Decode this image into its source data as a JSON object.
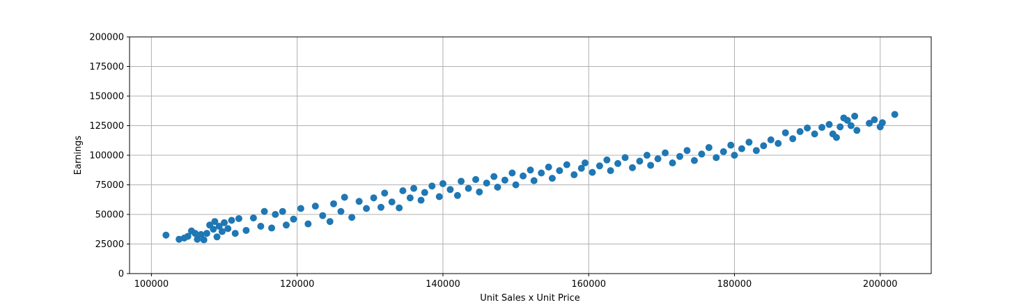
{
  "chart_data": {
    "type": "scatter",
    "title": "",
    "xlabel": "Unit Sales x Unit Price",
    "ylabel": "Earnings",
    "xlim": [
      97000,
      207000
    ],
    "ylim": [
      0,
      200000
    ],
    "x_ticks": [
      100000,
      120000,
      140000,
      160000,
      180000,
      200000
    ],
    "y_ticks": [
      0,
      25000,
      50000,
      75000,
      100000,
      125000,
      150000,
      175000,
      200000
    ],
    "grid": true,
    "legend": "none",
    "series": [
      {
        "color": "#1f77b4",
        "points": [
          [
            102000,
            32500
          ],
          [
            103800,
            29000
          ],
          [
            104500,
            30000
          ],
          [
            105000,
            31500
          ],
          [
            105500,
            36000
          ],
          [
            106000,
            34000
          ],
          [
            106300,
            29000
          ],
          [
            106800,
            33000
          ],
          [
            107200,
            28500
          ],
          [
            107600,
            34000
          ],
          [
            108000,
            41000
          ],
          [
            108500,
            37500
          ],
          [
            108700,
            44000
          ],
          [
            109000,
            31000
          ],
          [
            109300,
            40000
          ],
          [
            109700,
            35500
          ],
          [
            110000,
            43000
          ],
          [
            110500,
            38000
          ],
          [
            111000,
            45000
          ],
          [
            111500,
            34000
          ],
          [
            112000,
            46500
          ],
          [
            113000,
            36500
          ],
          [
            114000,
            47000
          ],
          [
            115000,
            40000
          ],
          [
            115500,
            52500
          ],
          [
            116500,
            38500
          ],
          [
            117000,
            50000
          ],
          [
            118000,
            52500
          ],
          [
            118500,
            41000
          ],
          [
            119500,
            46000
          ],
          [
            120500,
            55000
          ],
          [
            121500,
            42000
          ],
          [
            122500,
            57000
          ],
          [
            123500,
            49000
          ],
          [
            124500,
            44000
          ],
          [
            125000,
            59000
          ],
          [
            126000,
            52500
          ],
          [
            126500,
            64500
          ],
          [
            127500,
            47500
          ],
          [
            128500,
            61000
          ],
          [
            129500,
            55000
          ],
          [
            130500,
            64000
          ],
          [
            131500,
            56000
          ],
          [
            132000,
            68000
          ],
          [
            133000,
            60500
          ],
          [
            134000,
            55500
          ],
          [
            134500,
            70000
          ],
          [
            135500,
            64000
          ],
          [
            136000,
            72000
          ],
          [
            137000,
            62000
          ],
          [
            137500,
            68500
          ],
          [
            138500,
            74000
          ],
          [
            139500,
            65000
          ],
          [
            140000,
            76000
          ],
          [
            141000,
            71000
          ],
          [
            142000,
            66000
          ],
          [
            142500,
            78000
          ],
          [
            143500,
            72000
          ],
          [
            144500,
            79500
          ],
          [
            145000,
            69000
          ],
          [
            146000,
            76500
          ],
          [
            147000,
            82000
          ],
          [
            147500,
            73000
          ],
          [
            148500,
            79000
          ],
          [
            149500,
            85000
          ],
          [
            150000,
            75000
          ],
          [
            151000,
            82500
          ],
          [
            152000,
            87500
          ],
          [
            152500,
            78500
          ],
          [
            153500,
            85000
          ],
          [
            154500,
            90000
          ],
          [
            155000,
            80500
          ],
          [
            156000,
            87000
          ],
          [
            157000,
            92000
          ],
          [
            158000,
            83500
          ],
          [
            159000,
            89000
          ],
          [
            159500,
            93500
          ],
          [
            160500,
            85500
          ],
          [
            161500,
            91000
          ],
          [
            162500,
            96000
          ],
          [
            163000,
            87000
          ],
          [
            164000,
            93000
          ],
          [
            165000,
            98000
          ],
          [
            166000,
            89500
          ],
          [
            167000,
            95000
          ],
          [
            168000,
            100000
          ],
          [
            168500,
            91500
          ],
          [
            169500,
            97000
          ],
          [
            170500,
            102000
          ],
          [
            171500,
            93500
          ],
          [
            172500,
            99000
          ],
          [
            173500,
            104000
          ],
          [
            174500,
            95500
          ],
          [
            175500,
            101000
          ],
          [
            176500,
            106500
          ],
          [
            177500,
            98000
          ],
          [
            178500,
            103000
          ],
          [
            179500,
            108500
          ],
          [
            180000,
            100000
          ],
          [
            181000,
            105500
          ],
          [
            182000,
            111000
          ],
          [
            183000,
            104000
          ],
          [
            184000,
            108000
          ],
          [
            185000,
            113000
          ],
          [
            186000,
            110000
          ],
          [
            187000,
            119000
          ],
          [
            188000,
            114000
          ],
          [
            189000,
            120000
          ],
          [
            190000,
            123000
          ],
          [
            191000,
            118000
          ],
          [
            192000,
            123500
          ],
          [
            193000,
            126000
          ],
          [
            193500,
            118000
          ],
          [
            194000,
            115000
          ],
          [
            194500,
            124000
          ],
          [
            195000,
            131500
          ],
          [
            195500,
            129500
          ],
          [
            196000,
            125000
          ],
          [
            196500,
            133000
          ],
          [
            196800,
            121000
          ],
          [
            198500,
            127000
          ],
          [
            199200,
            130000
          ],
          [
            200000,
            124000
          ],
          [
            200300,
            127500
          ],
          [
            202000,
            134500
          ]
        ]
      }
    ]
  }
}
